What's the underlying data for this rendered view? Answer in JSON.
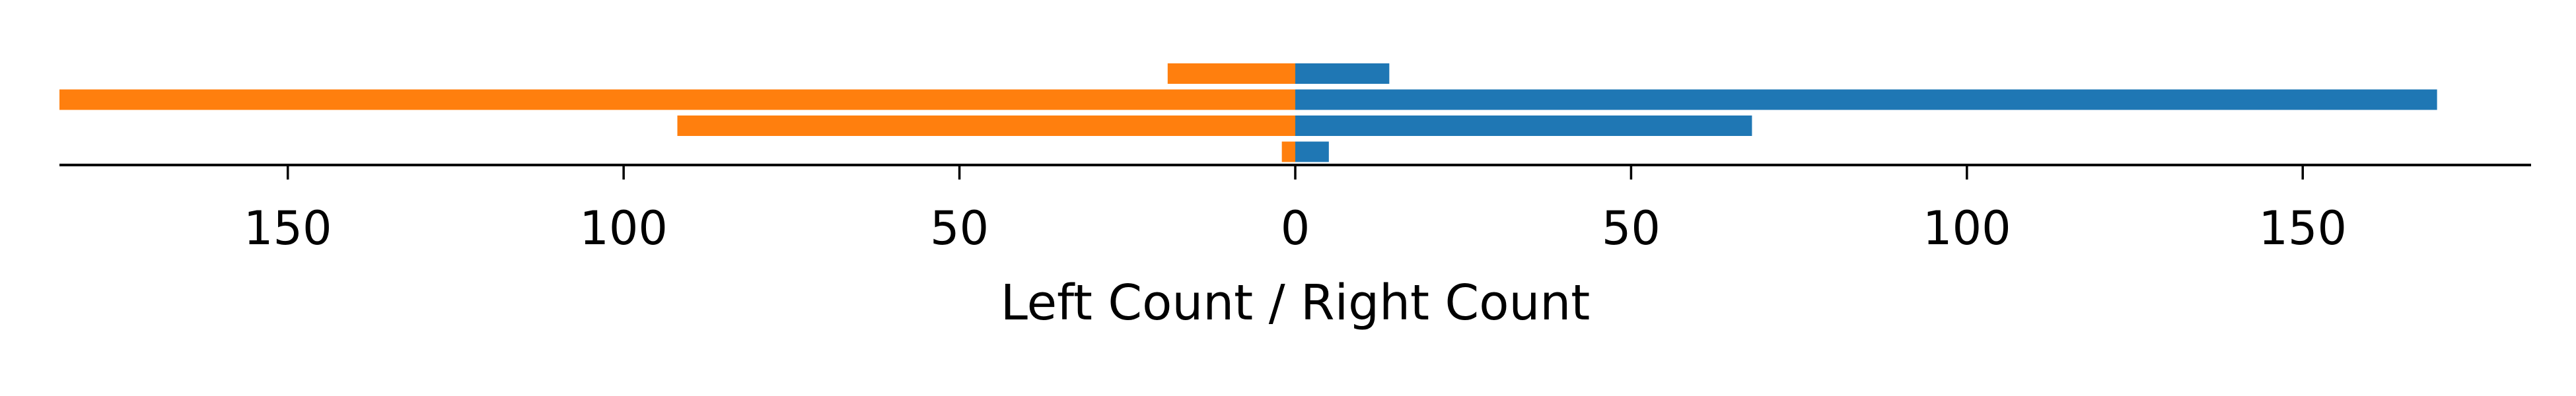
{
  "chart_data": {
    "type": "bar",
    "orientation": "horizontal-diverging",
    "title": "",
    "xlabel": "Left Count / Right Count",
    "ylabel": "",
    "xlim": [
      -184,
      184
    ],
    "grid": false,
    "legend": "none",
    "x_ticks": [
      -150,
      -100,
      -50,
      0,
      50,
      100,
      150
    ],
    "x_tick_labels": [
      "150",
      "100",
      "50",
      "0",
      "50",
      "100",
      "150"
    ],
    "rows": 4,
    "series": [
      {
        "side": "left",
        "color": "#ff7f0e",
        "values": [
          19,
          184,
          92,
          2
        ]
      },
      {
        "side": "right",
        "color": "#1f77b4",
        "values": [
          14,
          170,
          68,
          5
        ]
      }
    ]
  }
}
